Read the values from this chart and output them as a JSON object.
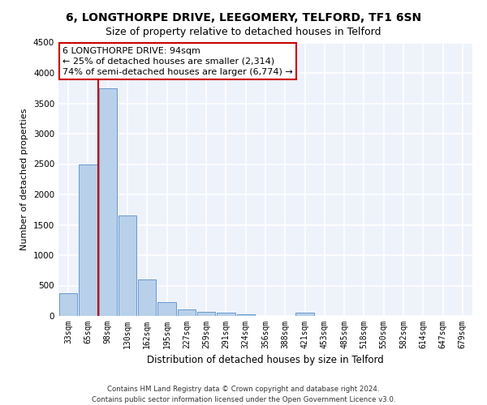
{
  "title": "6, LONGTHORPE DRIVE, LEEGOMERY, TELFORD, TF1 6SN",
  "subtitle": "Size of property relative to detached houses in Telford",
  "xlabel": "Distribution of detached houses by size in Telford",
  "ylabel": "Number of detached properties",
  "categories": [
    "33sqm",
    "65sqm",
    "98sqm",
    "130sqm",
    "162sqm",
    "195sqm",
    "227sqm",
    "259sqm",
    "291sqm",
    "324sqm",
    "356sqm",
    "388sqm",
    "421sqm",
    "453sqm",
    "485sqm",
    "518sqm",
    "550sqm",
    "582sqm",
    "614sqm",
    "647sqm",
    "679sqm"
  ],
  "values": [
    370,
    2500,
    3750,
    1650,
    600,
    230,
    110,
    70,
    50,
    30,
    0,
    0,
    60,
    0,
    0,
    0,
    0,
    0,
    0,
    0,
    0
  ],
  "bar_color": "#b8d0ea",
  "bar_edge_color": "#6699cc",
  "property_bin_index": 2,
  "annotation_line1": "6 LONGTHORPE DRIVE: 94sqm",
  "annotation_line2": "← 25% of detached houses are smaller (2,314)",
  "annotation_line3": "74% of semi-detached houses are larger (6,774) →",
  "vline_color": "#cc0000",
  "annotation_box_edgecolor": "#cc0000",
  "ylim": [
    0,
    4500
  ],
  "yticks": [
    0,
    500,
    1000,
    1500,
    2000,
    2500,
    3000,
    3500,
    4000,
    4500
  ],
  "background_color": "#eef2fb",
  "grid_color": "#ffffff",
  "footer": "Contains HM Land Registry data © Crown copyright and database right 2024.\nContains public sector information licensed under the Open Government Licence v3.0.",
  "title_fontsize": 10,
  "subtitle_fontsize": 9,
  "axis_label_fontsize": 8.5,
  "tick_fontsize": 7,
  "annotation_fontsize": 8,
  "ylabel_fontsize": 8
}
